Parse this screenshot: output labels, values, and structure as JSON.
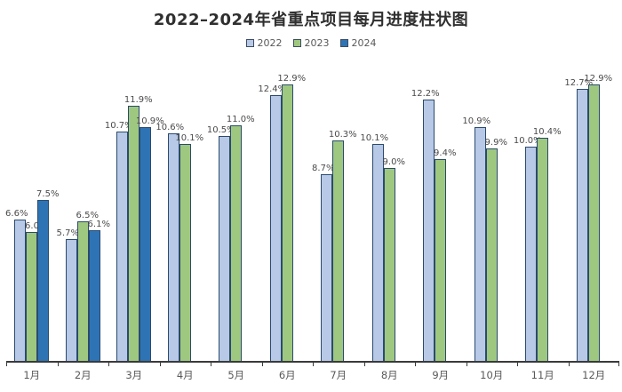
{
  "chart_data": {
    "type": "bar",
    "title": "2022–2024年省重点项目每月进度柱状图",
    "categories": [
      "1月",
      "2月",
      "3月",
      "4月",
      "5月",
      "6月",
      "7月",
      "8月",
      "9月",
      "10月",
      "11月",
      "12月"
    ],
    "series": [
      {
        "name": "2022",
        "color": "#b7c9e6",
        "values": [
          6.6,
          5.7,
          10.7,
          10.6,
          10.5,
          12.4,
          8.7,
          10.1,
          12.2,
          10.9,
          10.0,
          12.7
        ]
      },
      {
        "name": "2023",
        "color": "#9ec87f",
        "values": [
          6.0,
          6.5,
          11.9,
          10.1,
          11.0,
          12.9,
          10.3,
          9.0,
          9.4,
          9.9,
          10.4,
          12.9
        ]
      },
      {
        "name": "2024",
        "color": "#2e74b5",
        "values": [
          7.5,
          6.1,
          10.9,
          null,
          null,
          null,
          null,
          null,
          null,
          null,
          null,
          null
        ]
      }
    ],
    "value_suffix": "%",
    "value_decimals": 1,
    "ylim": [
      0,
      13.6
    ],
    "grid": false,
    "legend_position": "top",
    "data_labels": "outside-end",
    "axis_color": "#3a3a3a",
    "bar_border_color": "#2b4a6e",
    "label_color": "#4a4a4a",
    "tick_label_color": "#595959"
  }
}
